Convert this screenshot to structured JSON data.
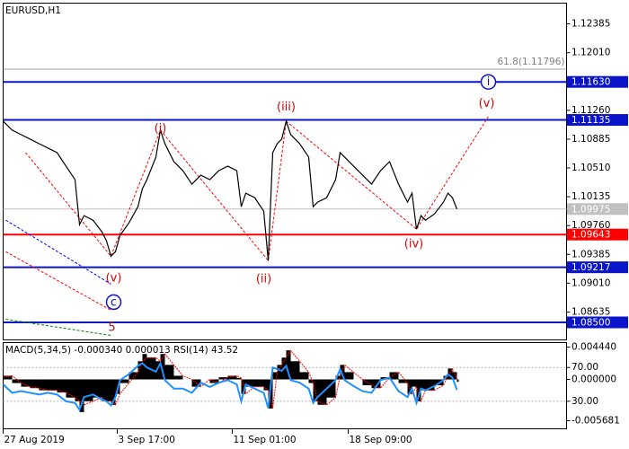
{
  "chart_data": [
    {
      "type": "line",
      "title": "EURUSD,H1",
      "color": "#000000",
      "x": [
        0,
        10,
        20,
        30,
        40,
        50,
        60,
        70,
        80,
        85,
        90,
        100,
        110,
        115,
        120,
        125,
        130,
        140,
        150,
        155,
        160,
        170,
        175,
        180,
        190,
        200,
        210,
        220,
        230,
        240,
        250,
        260,
        265,
        270,
        280,
        290,
        295,
        300,
        305,
        310,
        315,
        320,
        330,
        340,
        345,
        350,
        360,
        370,
        375,
        380,
        390,
        400,
        410,
        420,
        430,
        440,
        450,
        455,
        460,
        465,
        470,
        480,
        490,
        495,
        500,
        505
      ],
      "values": [
        1.11119,
        1.11002,
        1.10944,
        1.10885,
        1.10826,
        1.10768,
        1.10709,
        1.10533,
        1.10358,
        1.09772,
        1.09889,
        1.0983,
        1.09678,
        1.09561,
        1.09361,
        1.0942,
        1.09631,
        1.09795,
        1.10006,
        1.1024,
        1.10358,
        1.10651,
        1.11002,
        1.10826,
        1.10592,
        1.10475,
        1.10299,
        1.10416,
        1.10358,
        1.10475,
        1.10533,
        1.10475,
        1.10006,
        1.10182,
        1.10123,
        1.09947,
        1.09303,
        1.10709,
        1.10826,
        1.10885,
        1.11119,
        1.10944,
        1.10826,
        1.10651,
        1.10006,
        1.10065,
        1.10123,
        1.10358,
        1.10709,
        1.10651,
        1.10533,
        1.10416,
        1.10299,
        1.10475,
        1.10592,
        1.10299,
        1.10065,
        1.10182,
        1.09713,
        1.09889,
        1.0983,
        1.09912,
        1.10065,
        1.10182,
        1.10123,
        1.09975
      ],
      "xlim": [
        0,
        627
      ],
      "xticks": [
        {
          "value": 0,
          "label": "27 Aug 2019"
        },
        {
          "value": 127,
          "label": "3 Sep 17:00"
        },
        {
          "value": 255,
          "label": "11 Sep 01:00"
        },
        {
          "value": 384,
          "label": "18 Sep 09:00"
        }
      ],
      "ylim": [
        1.08272,
        1.12655
      ],
      "yticks": [
        1.12385,
        {
          "value": 1.1201,
          "label": "1.12010"
        },
        {
          "value": 1.1126,
          "label": "1.11260"
        },
        1.10885,
        {
          "value": 1.1051,
          "label": "1.10510"
        },
        1.10135,
        {
          "value": 1.0976,
          "label": "1.09760"
        },
        1.09385,
        {
          "value": 1.0901,
          "label": "1.09010"
        },
        1.08635
      ],
      "levels": [
        {
          "value": 1.1163,
          "label": "1.11630",
          "color": "#0a14c8"
        },
        {
          "value": 1.11135,
          "label": "1.11135",
          "color": "#0a14c8"
        },
        {
          "value": 1.09643,
          "label": "1.09643",
          "color": "#ff0000"
        },
        {
          "value": 1.09217,
          "label": "1.09217",
          "color": "#0a14c8"
        },
        {
          "value": 1.085,
          "label": "1.08500",
          "color": "#0a14c8"
        }
      ],
      "current_price": 1.09975,
      "current_color": "#c0c0c0",
      "fibo": {
        "label": "61.8(1.11796)",
        "value": 1.11796,
        "color": "#a0a0a0"
      },
      "wave_lines": [
        {
          "color": "#ff0000",
          "points": [
            [
              25,
              1.10709
            ],
            [
              120,
              1.09361
            ],
            [
              175,
              1.11002
            ],
            [
              295,
              1.09303
            ],
            [
              315,
              1.11119
            ],
            [
              460,
              1.09713
            ],
            [
              540,
              1.11178
            ]
          ]
        },
        {
          "color": "#0000ff",
          "points": [
            [
              3,
              1.0983
            ],
            [
              120,
              1.08998
            ]
          ]
        },
        {
          "color": "#ff0000",
          "points": [
            [
              3,
              1.0942
            ],
            [
              120,
              1.08658
            ]
          ]
        },
        {
          "color": "#008000",
          "points": [
            [
              3,
              1.08541
            ],
            [
              120,
              1.0833
            ]
          ]
        }
      ],
      "annotations": [
        {
          "text": "(i)",
          "x": 175,
          "y": 1.11026,
          "color": "#e00000"
        },
        {
          "text": "(ii)",
          "x": 290,
          "y": 1.09068,
          "color": "#e00000"
        },
        {
          "text": "(iii)",
          "x": 315,
          "y": 1.11307,
          "color": "#e00000"
        },
        {
          "text": "(iv)",
          "x": 457,
          "y": 1.09525,
          "color": "#e00000"
        },
        {
          "text": "(v)",
          "x": 538,
          "y": 1.11354,
          "color": "#e00000"
        },
        {
          "text": "(v)",
          "x": 123,
          "y": 1.0908,
          "color": "#e00000"
        },
        {
          "text": "c",
          "x": 123,
          "y": 1.08764,
          "color": "#0a14c8",
          "circle": true
        },
        {
          "text": "i",
          "x": 540,
          "y": 1.1163,
          "color": "#0a14c8",
          "circle": true
        },
        {
          "text": "5",
          "x": 121,
          "y": 1.08436,
          "color": "#a02020"
        }
      ]
    },
    {
      "type": "macd",
      "title": "MACD(5,34,5) -0.000340 0.000013 RSI(14) 43.52",
      "x": [
        0,
        10,
        20,
        30,
        40,
        50,
        60,
        70,
        80,
        85,
        90,
        100,
        110,
        115,
        120,
        125,
        130,
        140,
        150,
        155,
        160,
        170,
        175,
        180,
        190,
        200,
        210,
        220,
        230,
        240,
        250,
        260,
        265,
        270,
        280,
        290,
        295,
        300,
        305,
        310,
        315,
        320,
        330,
        340,
        345,
        350,
        360,
        370,
        375,
        380,
        390,
        400,
        410,
        420,
        430,
        440,
        450,
        455,
        460,
        465,
        470,
        480,
        490,
        495,
        500,
        505
      ],
      "series": [
        {
          "color": "#000000",
          "values": [
            0.0005,
            -0.0005,
            -0.001,
            -0.0012,
            -0.0015,
            -0.0015,
            -0.0018,
            -0.0025,
            -0.003,
            -0.0045,
            -0.003,
            -0.0025,
            -0.003,
            -0.003,
            -0.0035,
            -0.002,
            -0.0005,
            0.001,
            0.0025,
            0.0035,
            0.003,
            0.0025,
            0.0035,
            0.002,
            0.0005,
            0,
            -0.001,
            0,
            -0.0005,
            0.0003,
            0.0005,
            0.0002,
            -0.002,
            -0.001,
            -0.001,
            -0.0015,
            -0.004,
            0.001,
            0.002,
            0.003,
            0.004,
            0.0025,
            0.001,
            -0.0005,
            -0.003,
            -0.0035,
            -0.0025,
            0.0005,
            0.002,
            0.001,
            0,
            -0.0008,
            -0.0012,
            0.0003,
            0.001,
            -0.0005,
            -0.002,
            -0.001,
            -0.003,
            -0.0015,
            -0.0015,
            -0.0008,
            0.0005,
            0.0015,
            0.001,
            -0.00034
          ]
        },
        {
          "color": "#ff0000",
          "values": [
            0.0003,
            0.0005,
            -0.0005,
            -0.001,
            -0.0012,
            -0.0015,
            -0.0015,
            -0.0018,
            -0.0025,
            -0.003,
            -0.0035,
            -0.003,
            -0.0025,
            -0.003,
            -0.003,
            -0.0035,
            -0.002,
            -0.0005,
            0.001,
            0.0025,
            0.003,
            0.003,
            0.0025,
            0.0035,
            0.002,
            0.0005,
            0,
            -0.001,
            0,
            -0.0005,
            0.0003,
            0.0005,
            0.0002,
            -0.002,
            -0.001,
            -0.001,
            -0.0015,
            -0.004,
            0.001,
            0.002,
            0.003,
            0.004,
            0.0025,
            0.001,
            -0.0005,
            -0.003,
            -0.0035,
            -0.0025,
            0.0005,
            0.002,
            0.001,
            0,
            -0.0008,
            -0.0012,
            0.0003,
            0.001,
            -0.0005,
            -0.002,
            -0.001,
            -0.003,
            -0.0015,
            -0.0015,
            -0.0008,
            0.0005,
            0.0015,
            1.3e-05
          ]
        },
        {
          "color": "#1e90ff",
          "axis": "y2",
          "values": [
            50,
            40,
            42,
            40,
            38,
            40,
            38,
            30,
            28,
            20,
            35,
            38,
            32,
            30,
            25,
            35,
            55,
            62,
            72,
            75,
            70,
            65,
            75,
            55,
            45,
            45,
            40,
            52,
            47,
            52,
            55,
            50,
            30,
            50,
            45,
            40,
            22,
            70,
            68,
            66,
            72,
            55,
            52,
            45,
            28,
            35,
            45,
            55,
            68,
            55,
            48,
            42,
            40,
            55,
            58,
            42,
            35,
            45,
            28,
            45,
            43,
            48,
            55,
            62,
            58,
            43.52
          ]
        }
      ],
      "xlim": [
        0,
        627
      ],
      "ylim": [
        -0.0068,
        0.00507
      ],
      "yticks": [
        {
          "value": 0.00444,
          "label": "0.004440"
        },
        {
          "value": 0,
          "label": "0.000000"
        },
        {
          "value": -0.005681,
          "label": "-0.005681"
        }
      ],
      "y2lim": [
        -2.6,
        99.5
      ],
      "y2ticks": [
        {
          "value": 70,
          "label": "70.00"
        },
        {
          "value": 30,
          "label": "30.00"
        }
      ],
      "grid": true
    }
  ]
}
